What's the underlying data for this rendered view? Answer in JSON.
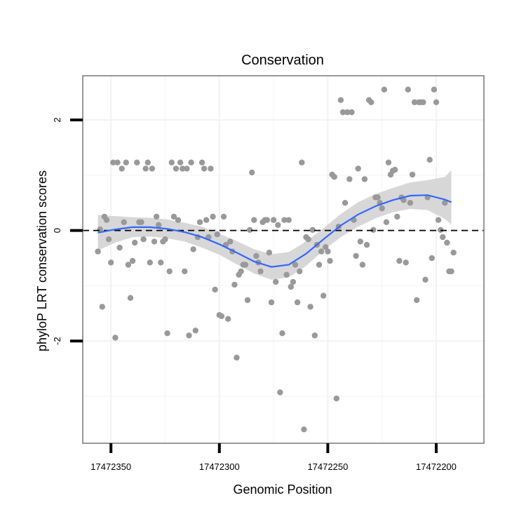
{
  "chart_data": {
    "type": "scatter",
    "title": "Conservation",
    "xlabel": "Genomic Position",
    "ylabel": "phyloP LRT conservation scores",
    "x_reversed": true,
    "xlim": [
      17472178,
      17472363
    ],
    "ylim": [
      -3.85,
      2.8
    ],
    "x_ticks": [
      17472350,
      17472300,
      17472250,
      17472200
    ],
    "x_tick_labels": [
      "17472350",
      "17472300",
      "17472250",
      "17472200"
    ],
    "y_ticks": [
      2,
      0,
      -2
    ],
    "y_tick_labels": [
      "2",
      "0",
      "-2"
    ],
    "reference_line": {
      "y": 0,
      "style": "dashed"
    },
    "colors": {
      "points": "#999999",
      "smooth": "#3366ff",
      "band": "#d3d3d3",
      "frame": "#7f7f7f",
      "grid": "#f2f2f2",
      "refline": "#000000"
    },
    "points": [
      {
        "x": 17472356,
        "y": -0.38
      },
      {
        "x": 17472355,
        "y": 0.02
      },
      {
        "x": 17472354,
        "y": -1.38
      },
      {
        "x": 17472353,
        "y": 0.25
      },
      {
        "x": 17472352,
        "y": 0.19
      },
      {
        "x": 17472351,
        "y": -0.16
      },
      {
        "x": 17472350,
        "y": -0.58
      },
      {
        "x": 17472349,
        "y": 1.23
      },
      {
        "x": 17472348,
        "y": -1.94
      },
      {
        "x": 17472347,
        "y": 1.23
      },
      {
        "x": 17472346,
        "y": -0.31
      },
      {
        "x": 17472345,
        "y": 1.12
      },
      {
        "x": 17472344,
        "y": 0.15
      },
      {
        "x": 17472343,
        "y": 1.23
      },
      {
        "x": 17472342,
        "y": -0.62
      },
      {
        "x": 17472341,
        "y": -1.22
      },
      {
        "x": 17472340,
        "y": -0.55
      },
      {
        "x": 17472339,
        "y": -0.22
      },
      {
        "x": 17472338,
        "y": 1.23
      },
      {
        "x": 17472337,
        "y": 0.15
      },
      {
        "x": 17472336,
        "y": 0.15
      },
      {
        "x": 17472335,
        "y": -0.16
      },
      {
        "x": 17472334,
        "y": 1.12
      },
      {
        "x": 17472333,
        "y": 1.23
      },
      {
        "x": 17472332,
        "y": -0.58
      },
      {
        "x": 17472331,
        "y": 1.12
      },
      {
        "x": 17472330,
        "y": -0.2
      },
      {
        "x": 17472329,
        "y": 0.25
      },
      {
        "x": 17472328,
        "y": 0.1
      },
      {
        "x": 17472327,
        "y": -0.58
      },
      {
        "x": 17472326,
        "y": -0.2
      },
      {
        "x": 17472325,
        "y": -0.16
      },
      {
        "x": 17472324,
        "y": -1.86
      },
      {
        "x": 17472323,
        "y": -0.74
      },
      {
        "x": 17472322,
        "y": 1.23
      },
      {
        "x": 17472321,
        "y": 0.25
      },
      {
        "x": 17472320,
        "y": 1.12
      },
      {
        "x": 17472319,
        "y": 0.19
      },
      {
        "x": 17472318,
        "y": 1.23
      },
      {
        "x": 17472317,
        "y": 1.12
      },
      {
        "x": 17472316,
        "y": -0.74
      },
      {
        "x": 17472315,
        "y": 1.12
      },
      {
        "x": 17472314,
        "y": -1.9
      },
      {
        "x": 17472313,
        "y": 1.23
      },
      {
        "x": 17472312,
        "y": -0.34
      },
      {
        "x": 17472311,
        "y": -1.81
      },
      {
        "x": 17472310,
        "y": -0.12
      },
      {
        "x": 17472309,
        "y": 0.15
      },
      {
        "x": 17472308,
        "y": 1.23
      },
      {
        "x": 17472307,
        "y": 1.12
      },
      {
        "x": 17472306,
        "y": 0.19
      },
      {
        "x": 17472305,
        "y": -0.12
      },
      {
        "x": 17472304,
        "y": 1.12
      },
      {
        "x": 17472303,
        "y": 0.25
      },
      {
        "x": 17472302,
        "y": -1.07
      },
      {
        "x": 17472301,
        "y": -0.07
      },
      {
        "x": 17472300,
        "y": -1.53
      },
      {
        "x": 17472299,
        "y": -1.55
      },
      {
        "x": 17472298,
        "y": 0.25
      },
      {
        "x": 17472297,
        "y": -0.26
      },
      {
        "x": 17472296,
        "y": -1.6
      },
      {
        "x": 17472295,
        "y": -0.2
      },
      {
        "x": 17472294,
        "y": -0.38
      },
      {
        "x": 17472293,
        "y": -0.98
      },
      {
        "x": 17472292,
        "y": -2.3
      },
      {
        "x": 17472291,
        "y": -0.8
      },
      {
        "x": 17472290,
        "y": -0.74
      },
      {
        "x": 17472289,
        "y": -0.62
      },
      {
        "x": 17472288,
        "y": -0.62
      },
      {
        "x": 17472287,
        "y": -1.26
      },
      {
        "x": 17472286,
        "y": 0.01
      },
      {
        "x": 17472285,
        "y": 1.05
      },
      {
        "x": 17472284,
        "y": 0.19
      },
      {
        "x": 17472283,
        "y": -0.46
      },
      {
        "x": 17472282,
        "y": -0.58
      },
      {
        "x": 17472281,
        "y": -0.74
      },
      {
        "x": 17472280,
        "y": 0.15
      },
      {
        "x": 17472279,
        "y": 0.19
      },
      {
        "x": 17472278,
        "y": 0.19
      },
      {
        "x": 17472277,
        "y": -0.4
      },
      {
        "x": 17472276,
        "y": -1.3
      },
      {
        "x": 17472275,
        "y": 0.19
      },
      {
        "x": 17472274,
        "y": -0.93
      },
      {
        "x": 17472273,
        "y": 0.1
      },
      {
        "x": 17472272,
        "y": -2.93
      },
      {
        "x": 17472271,
        "y": -1.86
      },
      {
        "x": 17472270,
        "y": 0.19
      },
      {
        "x": 17472269,
        "y": -0.8
      },
      {
        "x": 17472268,
        "y": 0.19
      },
      {
        "x": 17472267,
        "y": -1.02
      },
      {
        "x": 17472266,
        "y": -0.93
      },
      {
        "x": 17472265,
        "y": -0.62
      },
      {
        "x": 17472264,
        "y": -1.3
      },
      {
        "x": 17472263,
        "y": -0.74
      },
      {
        "x": 17472262,
        "y": 1.23
      },
      {
        "x": 17472261,
        "y": -3.6
      },
      {
        "x": 17472260,
        "y": -0.12
      },
      {
        "x": 17472259,
        "y": -0.16
      },
      {
        "x": 17472258,
        "y": -1.38
      },
      {
        "x": 17472257,
        "y": 0.01
      },
      {
        "x": 17472256,
        "y": -1.9
      },
      {
        "x": 17472255,
        "y": -0.26
      },
      {
        "x": 17472254,
        "y": -0.62
      },
      {
        "x": 17472253,
        "y": -0.38
      },
      {
        "x": 17472252,
        "y": -1.18
      },
      {
        "x": 17472251,
        "y": -0.3
      },
      {
        "x": 17472250,
        "y": -0.38
      },
      {
        "x": 17472249,
        "y": -0.55
      },
      {
        "x": 17472248,
        "y": 1.01
      },
      {
        "x": 17472247,
        "y": 0.97
      },
      {
        "x": 17472246,
        "y": -3.04
      },
      {
        "x": 17472245,
        "y": 0.07
      },
      {
        "x": 17472244,
        "y": 2.36
      },
      {
        "x": 17472243,
        "y": 2.14
      },
      {
        "x": 17472242,
        "y": 0.5
      },
      {
        "x": 17472241,
        "y": 2.14
      },
      {
        "x": 17472240,
        "y": 0.93
      },
      {
        "x": 17472239,
        "y": 2.14
      },
      {
        "x": 17472238,
        "y": 0.19
      },
      {
        "x": 17472237,
        "y": -0.46
      },
      {
        "x": 17472236,
        "y": 1.12
      },
      {
        "x": 17472235,
        "y": -0.2
      },
      {
        "x": 17472234,
        "y": -0.62
      },
      {
        "x": 17472233,
        "y": 0.93
      },
      {
        "x": 17472232,
        "y": -0.26
      },
      {
        "x": 17472231,
        "y": 2.36
      },
      {
        "x": 17472230,
        "y": 2.32
      },
      {
        "x": 17472229,
        "y": 0.01
      },
      {
        "x": 17472228,
        "y": 0.6
      },
      {
        "x": 17472227,
        "y": 0.6
      },
      {
        "x": 17472226,
        "y": 0.5
      },
      {
        "x": 17472225,
        "y": 0.4
      },
      {
        "x": 17472224,
        "y": 2.55
      },
      {
        "x": 17472223,
        "y": 0.15
      },
      {
        "x": 17472222,
        "y": 1.23
      },
      {
        "x": 17472221,
        "y": 1.01
      },
      {
        "x": 17472220,
        "y": 1.08
      },
      {
        "x": 17472219,
        "y": 1.1
      },
      {
        "x": 17472218,
        "y": 0.25
      },
      {
        "x": 17472217,
        "y": -0.55
      },
      {
        "x": 17472216,
        "y": 0.6
      },
      {
        "x": 17472215,
        "y": 0.55
      },
      {
        "x": 17472214,
        "y": -0.58
      },
      {
        "x": 17472213,
        "y": 2.55
      },
      {
        "x": 17472212,
        "y": 0.5
      },
      {
        "x": 17472211,
        "y": 1.01
      },
      {
        "x": 17472210,
        "y": 2.32
      },
      {
        "x": 17472209,
        "y": -1.26
      },
      {
        "x": 17472208,
        "y": 2.32
      },
      {
        "x": 17472207,
        "y": 2.32
      },
      {
        "x": 17472206,
        "y": 2.32
      },
      {
        "x": 17472205,
        "y": -0.89
      },
      {
        "x": 17472204,
        "y": 0.6
      },
      {
        "x": 17472203,
        "y": 1.28
      },
      {
        "x": 17472202,
        "y": -0.5
      },
      {
        "x": 17472201,
        "y": 2.55
      },
      {
        "x": 17472200,
        "y": 2.32
      },
      {
        "x": 17472199,
        "y": 0.19
      },
      {
        "x": 17472198,
        "y": 0.01
      },
      {
        "x": 17472197,
        "y": -0.12
      },
      {
        "x": 17472196,
        "y": 0.5
      },
      {
        "x": 17472195,
        "y": -0.22
      },
      {
        "x": 17472194,
        "y": -0.74
      },
      {
        "x": 17472193,
        "y": -0.74
      },
      {
        "x": 17472192,
        "y": -0.4
      }
    ],
    "smooth": {
      "x": [
        17472356,
        17472348,
        17472340,
        17472332,
        17472324,
        17472316,
        17472308,
        17472300,
        17472292,
        17472284,
        17472276,
        17472268,
        17472260,
        17472252,
        17472244,
        17472236,
        17472228,
        17472220,
        17472212,
        17472204,
        17472196,
        17472193
      ],
      "y": [
        -0.04,
        0.02,
        0.06,
        0.06,
        0.03,
        -0.03,
        -0.12,
        -0.25,
        -0.4,
        -0.56,
        -0.66,
        -0.62,
        -0.42,
        -0.16,
        0.09,
        0.29,
        0.44,
        0.55,
        0.63,
        0.64,
        0.56,
        0.51
      ],
      "lower": [
        -0.36,
        -0.22,
        -0.12,
        -0.11,
        -0.14,
        -0.2,
        -0.31,
        -0.44,
        -0.61,
        -0.78,
        -0.89,
        -0.85,
        -0.64,
        -0.36,
        -0.12,
        0.07,
        0.22,
        0.33,
        0.39,
        0.37,
        0.21,
        0.11
      ],
      "upper": [
        0.28,
        0.26,
        0.24,
        0.23,
        0.2,
        0.14,
        0.07,
        -0.06,
        -0.19,
        -0.34,
        -0.43,
        -0.39,
        -0.2,
        0.04,
        0.3,
        0.51,
        0.66,
        0.77,
        0.87,
        0.91,
        0.97,
        1.09
      ]
    }
  }
}
